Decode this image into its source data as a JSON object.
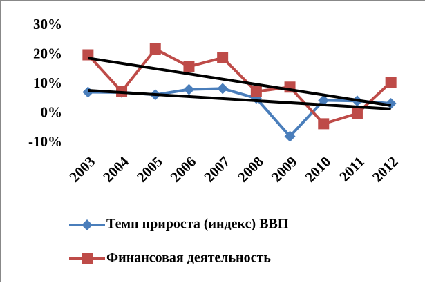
{
  "chart_data": {
    "type": "line",
    "categories": [
      "2003",
      "2004",
      "2005",
      "2006",
      "2007",
      "2008",
      "2009",
      "2010",
      "2011",
      "2012"
    ],
    "series": [
      {
        "name": "Темп прироста (индекс) ВВП",
        "color": "#4a7ebb",
        "marker": "diamond",
        "values": [
          7.3,
          7.2,
          6.4,
          8.2,
          8.5,
          5.2,
          -7.8,
          4.5,
          4.3,
          3.4
        ]
      },
      {
        "name": "Финансовая деятельность",
        "color": "#be4b48",
        "marker": "square",
        "values": [
          20,
          7.5,
          22,
          16,
          19,
          7.5,
          9,
          -3.5,
          0,
          10.7
        ]
      }
    ],
    "ylim": [
      -10,
      30
    ],
    "yticks": [
      {
        "value": -10,
        "label": "-10%"
      },
      {
        "value": 0,
        "label": "0%"
      },
      {
        "value": 10,
        "label": "10%"
      },
      {
        "value": 20,
        "label": "20%"
      },
      {
        "value": 30,
        "label": "30%"
      }
    ],
    "trendline": true,
    "trendline_color": "#000000",
    "grid": false,
    "legend": "bottom"
  }
}
